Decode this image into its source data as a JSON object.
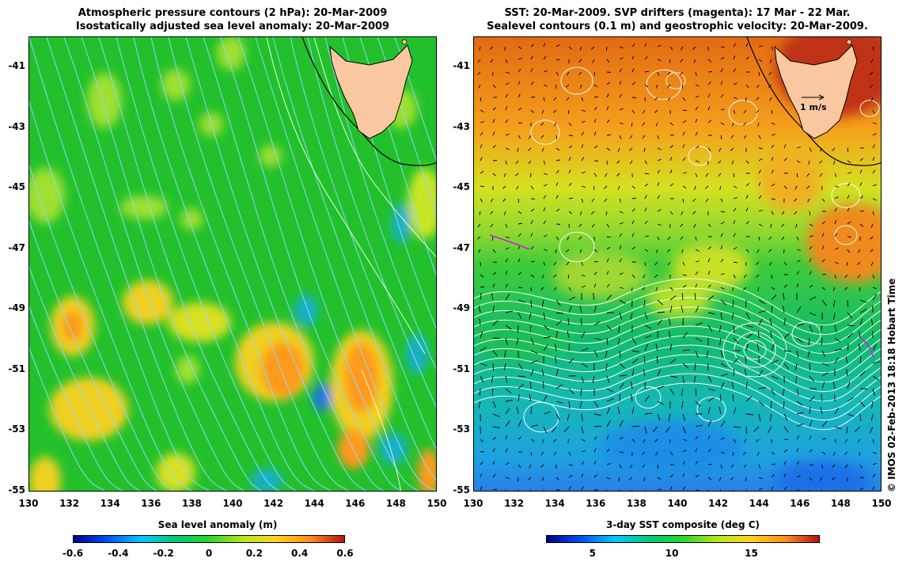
{
  "left_panel": {
    "title_line1": "Atmospheric pressure contours (2 hPa): 20-Mar-2009",
    "title_line2": "Isostatically adjusted sea level anomaly: 20-Mar-2009",
    "colorbar": {
      "label": "Sea level anomaly (m)",
      "ticks": [
        "-0.6",
        "-0.4",
        "-0.2",
        "0",
        "0.2",
        "0.4",
        "0.6"
      ],
      "gradient": [
        "#00008b",
        "#0050ff",
        "#00c8ff",
        "#00c878",
        "#2ad62a",
        "#b4e61e",
        "#ffd21e",
        "#ff8c1e",
        "#b41414"
      ]
    },
    "colors": {
      "background": "#22c12b",
      "land": "#f9c8a0",
      "pressure_contour": "#8fd6ff"
    }
  },
  "right_panel": {
    "title_line1": "SST: 20-Mar-2009. SVP drifters (magenta): 17 Mar - 22 Mar.",
    "title_line2": "Sealevel contours (0.1 m) and geostrophic velocity: 20-Mar-2009.",
    "velocity_scale_label": "1 m/s",
    "colorbar": {
      "label": "3-day SST composite (deg C)",
      "ticks": [
        "5",
        "10",
        "15"
      ],
      "gradient": [
        "#00008b",
        "#0050ff",
        "#00c8ff",
        "#00c878",
        "#2ad62a",
        "#b4e61e",
        "#ffd21e",
        "#ff8c1e",
        "#b41414"
      ]
    },
    "colors": {
      "land": "#f9c8a0",
      "sea_level_contour": "#ffffff",
      "velocity_arrow": "#000000",
      "drifter": "#d020d0"
    }
  },
  "axes": {
    "lat_ticks": [
      "-41",
      "-43",
      "-45",
      "-47",
      "-49",
      "-51",
      "-53",
      "-55"
    ],
    "lon_ticks": [
      "130",
      "132",
      "134",
      "136",
      "138",
      "140",
      "142",
      "144",
      "146",
      "148",
      "150"
    ]
  },
  "credit": "© IMOS 02-Feb-2013 18:18 Hobart Time"
}
